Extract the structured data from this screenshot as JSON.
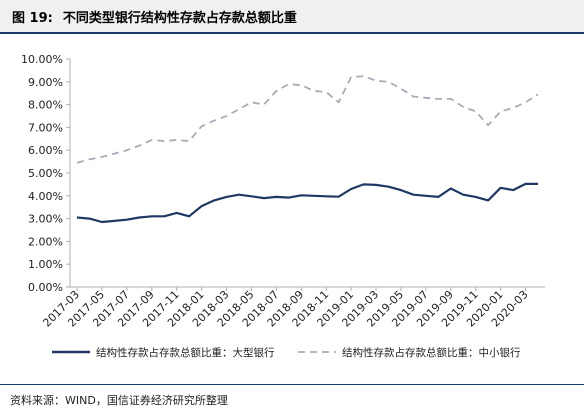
{
  "header": {
    "figure_no": "图 19:",
    "title": "不同类型银行结构性存款占存款总额比重"
  },
  "source_note": "资料来源：WIND，国信证券经济研究所整理",
  "colors": {
    "large_banks": "#1f3864",
    "small_medium_banks": "#a6adb8",
    "title_rule": "#1a3a6b"
  },
  "chart_data": {
    "type": "line",
    "title": "不同类型银行结构性存款占存款总额比重",
    "xlabel": "",
    "ylabel": "",
    "ylim": [
      0,
      10
    ],
    "y_ticks": [
      "0.00%",
      "1.00%",
      "2.00%",
      "3.00%",
      "4.00%",
      "5.00%",
      "6.00%",
      "7.00%",
      "8.00%",
      "9.00%",
      "10.00%"
    ],
    "x_tick_labels": [
      "2017-03",
      "2017-05",
      "2017-07",
      "2017-09",
      "2017-11",
      "2018-01",
      "2018-03",
      "2018-05",
      "2018-07",
      "2018-09",
      "2018-11",
      "2019-01",
      "2019-03",
      "2019-05",
      "2019-07",
      "2019-09",
      "2019-11",
      "2020-01",
      "2020-03"
    ],
    "x": [
      "2017-03",
      "2017-04",
      "2017-05",
      "2017-06",
      "2017-07",
      "2017-08",
      "2017-09",
      "2017-10",
      "2017-11",
      "2017-12",
      "2018-01",
      "2018-02",
      "2018-03",
      "2018-04",
      "2018-05",
      "2018-06",
      "2018-07",
      "2018-08",
      "2018-09",
      "2018-10",
      "2018-11",
      "2018-12",
      "2019-01",
      "2019-02",
      "2019-03",
      "2019-04",
      "2019-05",
      "2019-06",
      "2019-07",
      "2019-08",
      "2019-09",
      "2019-10",
      "2019-11",
      "2019-12",
      "2020-01",
      "2020-02",
      "2020-03",
      "2020-04"
    ],
    "grid": false,
    "legend_position": "bottom",
    "series": [
      {
        "name": "结构性存款占存款总额比重：大型银行",
        "style": "solid",
        "values": [
          3.05,
          3.0,
          2.85,
          2.9,
          2.95,
          3.05,
          3.1,
          3.1,
          3.25,
          3.1,
          3.55,
          3.8,
          3.95,
          4.05,
          3.98,
          3.9,
          3.95,
          3.92,
          4.02,
          4.0,
          3.98,
          3.96,
          4.3,
          4.5,
          4.48,
          4.4,
          4.25,
          4.05,
          4.0,
          3.95,
          4.32,
          4.05,
          3.95,
          3.8,
          4.35,
          4.25,
          4.52,
          4.52
        ]
      },
      {
        "name": "结构性存款占存款总额比重：中小银行",
        "style": "dashed",
        "values": [
          5.45,
          5.6,
          5.7,
          5.85,
          6.0,
          6.2,
          6.45,
          6.4,
          6.45,
          6.4,
          7.05,
          7.3,
          7.5,
          7.8,
          8.1,
          8.0,
          8.6,
          8.9,
          8.85,
          8.6,
          8.55,
          8.1,
          9.2,
          9.25,
          9.05,
          9.0,
          8.7,
          8.35,
          8.3,
          8.25,
          8.25,
          7.9,
          7.7,
          7.1,
          7.7,
          7.85,
          8.1,
          8.45
        ]
      }
    ]
  }
}
